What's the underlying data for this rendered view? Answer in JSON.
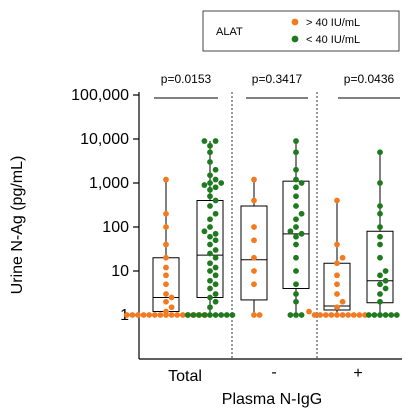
{
  "chart_data": {
    "type": "scatter",
    "subtype": "box-and-dot",
    "y_scale": "log",
    "ylim": [
      0.5,
      100000
    ],
    "ylabel": "Urine N-Ag (pg/mL)",
    "xlabel": "Plasma N-IgG",
    "y_ticks": [
      {
        "value": 1,
        "label": "1"
      },
      {
        "value": 10,
        "label": "10"
      },
      {
        "value": 100,
        "label": "100"
      },
      {
        "value": 1000,
        "label": "1,000"
      },
      {
        "value": 10000,
        "label": "10,000"
      },
      {
        "value": 100000,
        "label": "100,000"
      }
    ],
    "groups": [
      {
        "label": "Total",
        "p_value": "p=0.0153"
      },
      {
        "label": "-",
        "p_value": "p=0.3417"
      },
      {
        "label": "+",
        "p_value": "p=0.0436"
      }
    ],
    "legend": {
      "title": "ALAT",
      "entries": [
        {
          "label": "> 40 IU/mL",
          "color": "#f47a1f"
        },
        {
          "label": "< 40 IU/mL",
          "color": "#1f7a1f"
        }
      ]
    },
    "series": [
      {
        "group": "Total",
        "name": "> 40 IU/mL",
        "color": "#f47a1f",
        "box": {
          "q1": 1.2,
          "median": 2.5,
          "q3": 20,
          "min": 1,
          "max": 1200
        },
        "points": [
          1,
          1,
          1,
          1,
          1,
          1,
          1,
          1,
          1,
          1,
          1,
          1,
          1,
          1,
          1,
          1.2,
          1.5,
          2,
          2.5,
          3,
          5,
          8,
          12,
          20,
          40,
          100,
          200,
          1200
        ]
      },
      {
        "group": "Total",
        "name": "< 40 IU/mL",
        "color": "#1f7a1f",
        "box": {
          "q1": 2.5,
          "median": 23,
          "q3": 400,
          "min": 1,
          "max": 9000
        },
        "points": [
          1,
          1,
          1,
          1,
          1,
          1,
          1,
          1,
          1,
          1.5,
          2,
          2.5,
          3,
          4,
          5,
          6,
          8,
          10,
          12,
          15,
          20,
          25,
          30,
          40,
          50,
          60,
          70,
          80,
          100,
          150,
          200,
          300,
          400,
          500,
          700,
          800,
          900,
          1000,
          1000,
          1200,
          1500,
          2000,
          3000,
          5000,
          7000,
          9000,
          9000
        ]
      },
      {
        "group": "-",
        "name": "> 40 IU/mL",
        "color": "#f47a1f",
        "box": {
          "q1": 2.2,
          "median": 18,
          "q3": 300,
          "min": 1,
          "max": 1200
        },
        "points": [
          1,
          1,
          5,
          10,
          20,
          50,
          100,
          400,
          1200
        ]
      },
      {
        "group": "-",
        "name": "< 40 IU/mL",
        "color": "#1f7a1f",
        "box": {
          "q1": 4,
          "median": 70,
          "q3": 1100,
          "min": 1,
          "max": 9000
        },
        "points": [
          1,
          1,
          1,
          2,
          3,
          5,
          10,
          20,
          40,
          60,
          70,
          80,
          100,
          150,
          200,
          300,
          500,
          800,
          1000,
          1200,
          2000,
          5000,
          9000
        ]
      },
      {
        "group": "+",
        "name": "> 40 IU/mL",
        "color": "#f47a1f",
        "box": {
          "q1": 1.3,
          "median": 1.6,
          "q3": 15,
          "min": 1,
          "max": 400
        },
        "points": [
          1,
          1,
          1,
          1,
          1,
          1,
          1,
          1,
          1,
          1,
          1.2,
          1.5,
          2,
          3,
          5,
          8,
          15,
          20,
          40,
          400
        ]
      },
      {
        "group": "+",
        "name": "< 40 IU/mL",
        "color": "#1f7a1f",
        "box": {
          "q1": 1.9,
          "median": 6,
          "q3": 80,
          "min": 1,
          "max": 5000
        },
        "points": [
          1,
          1,
          1,
          1,
          1,
          1,
          2,
          3,
          4,
          5,
          6,
          8,
          10,
          20,
          40,
          60,
          100,
          200,
          300,
          1000,
          5000
        ]
      }
    ]
  }
}
